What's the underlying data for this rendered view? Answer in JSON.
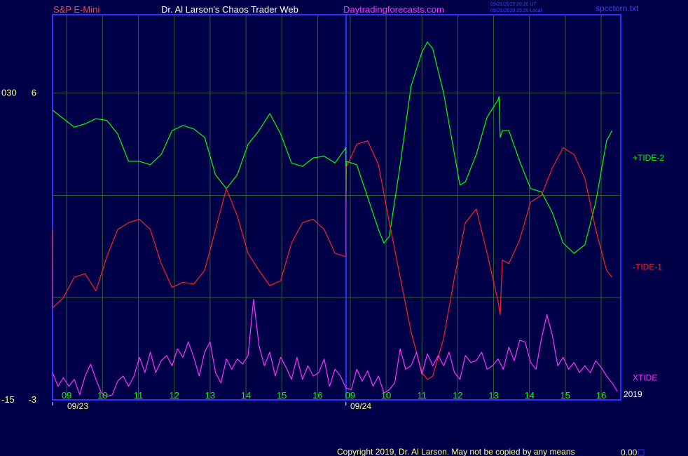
{
  "header": {
    "symbol": "S&P E-Mini",
    "title": "Dr. Al Larson's Chaos Trader Web",
    "site": "Daytradingforecasts.com",
    "stamp_line1": "09/21/2019 20:20 UT",
    "stamp_line2": "09/21/2019 15:20 Local",
    "file": "spcctorn.txt"
  },
  "footer": {
    "copyright": "Copyright 2019, Dr. Al Larson. May not be copied by any means",
    "value": "0.00"
  },
  "colors": {
    "background": "#000048",
    "axis": "#3030ff",
    "grid": "#306030",
    "tide2": "#00ff00",
    "tide1": "#ff2020",
    "xtide": "#ff30ff",
    "xlabels": "#00ff00",
    "header_symbol": "#ff4040",
    "header_title": "#ffffff",
    "header_site": "#ff30ff",
    "header_meta": "#4040ff",
    "yellow": "#ffff80"
  },
  "chart_data": {
    "type": "line",
    "y_ticks": [
      {
        "value": 6,
        "left_label": "030",
        "right_label": "6"
      },
      {
        "value": -3,
        "left_label": "-15",
        "right_label": "-3"
      }
    ],
    "x_hours": [
      "09",
      "10",
      "11",
      "12",
      "13",
      "14",
      "15",
      "16",
      "09",
      "10",
      "11",
      "12",
      "13",
      "14",
      "15",
      "16"
    ],
    "dates": [
      "09/23",
      "09/24"
    ],
    "year": "2019",
    "ylim": [
      -3,
      8.3
    ],
    "series": [
      {
        "name": "+TIDE-2",
        "key": "tide2",
        "values": [
          [
            0,
            5.5
          ],
          [
            2,
            5.0
          ],
          [
            3,
            5.1
          ],
          [
            4,
            5.25
          ],
          [
            5,
            5.2
          ],
          [
            6,
            4.8
          ],
          [
            7,
            4.0
          ],
          [
            8,
            4.0
          ],
          [
            9,
            3.9
          ],
          [
            10,
            4.2
          ],
          [
            11,
            4.9
          ],
          [
            12,
            5.05
          ],
          [
            13,
            4.95
          ],
          [
            14,
            4.7
          ],
          [
            15,
            3.6
          ],
          [
            16,
            3.2
          ],
          [
            17,
            3.6
          ],
          [
            18,
            4.5
          ],
          [
            19,
            4.9
          ],
          [
            20,
            5.4
          ],
          [
            21,
            4.8
          ],
          [
            22,
            3.95
          ],
          [
            23,
            3.85
          ],
          [
            24,
            4.1
          ],
          [
            25,
            4.15
          ],
          [
            26,
            3.95
          ],
          [
            27,
            4.4
          ],
          [
            27.01,
            2.8
          ],
          [
            27.05,
            4.0
          ],
          [
            28,
            3.9
          ],
          [
            30,
            2.0
          ],
          [
            30.5,
            1.6
          ],
          [
            31,
            1.8
          ],
          [
            32,
            3.9
          ],
          [
            33,
            6.2
          ],
          [
            34,
            7.2
          ],
          [
            34.5,
            7.5
          ],
          [
            35,
            7.3
          ],
          [
            36,
            6.0
          ],
          [
            37,
            4.2
          ],
          [
            37.5,
            3.3
          ],
          [
            38,
            3.4
          ],
          [
            39,
            4.2
          ],
          [
            40,
            5.3
          ],
          [
            41,
            5.8
          ],
          [
            41.1,
            5.9
          ],
          [
            41.2,
            4.7
          ],
          [
            41.4,
            4.9
          ],
          [
            42,
            4.9
          ],
          [
            43,
            4.0
          ],
          [
            44,
            3.2
          ],
          [
            45,
            3.1
          ],
          [
            46,
            2.5
          ],
          [
            47,
            1.6
          ],
          [
            48,
            1.3
          ],
          [
            49,
            1.55
          ],
          [
            50,
            2.8
          ],
          [
            51,
            4.6
          ],
          [
            51.5,
            4.9
          ]
        ]
      },
      {
        "name": "-TIDE-1",
        "key": "tide1",
        "values": [
          [
            0,
            2.0
          ],
          [
            0.01,
            -0.3
          ],
          [
            1,
            0.0
          ],
          [
            2,
            0.6
          ],
          [
            3,
            0.7
          ],
          [
            4,
            0.2
          ],
          [
            5,
            1.2
          ],
          [
            6,
            2.0
          ],
          [
            7,
            2.2
          ],
          [
            8,
            2.3
          ],
          [
            9,
            2.0
          ],
          [
            10,
            1.0
          ],
          [
            11,
            0.3
          ],
          [
            12,
            0.45
          ],
          [
            13,
            0.4
          ],
          [
            14,
            0.8
          ],
          [
            15,
            2.0
          ],
          [
            16,
            3.2
          ],
          [
            17,
            2.4
          ],
          [
            18,
            1.3
          ],
          [
            19,
            0.8
          ],
          [
            20,
            0.35
          ],
          [
            21,
            0.5
          ],
          [
            22,
            1.6
          ],
          [
            23,
            2.2
          ],
          [
            24,
            2.3
          ],
          [
            25,
            2.0
          ],
          [
            26,
            1.3
          ],
          [
            27,
            1.2
          ],
          [
            27.01,
            3.8
          ],
          [
            28,
            4.5
          ],
          [
            29,
            4.6
          ],
          [
            30,
            3.9
          ],
          [
            31,
            2.2
          ],
          [
            32,
            0.6
          ],
          [
            33,
            -1.0
          ],
          [
            34,
            -2.2
          ],
          [
            34.5,
            -2.4
          ],
          [
            35,
            -2.3
          ],
          [
            36,
            -1.2
          ],
          [
            37,
            0.6
          ],
          [
            38,
            2.2
          ],
          [
            39,
            2.6
          ],
          [
            40,
            1.3
          ],
          [
            41,
            -0.1
          ],
          [
            41.2,
            -0.5
          ],
          [
            41.4,
            1.1
          ],
          [
            42,
            1.0
          ],
          [
            43,
            1.7
          ],
          [
            44,
            2.8
          ],
          [
            45,
            3.0
          ],
          [
            46,
            3.8
          ],
          [
            47,
            4.4
          ],
          [
            48,
            4.2
          ],
          [
            49,
            3.5
          ],
          [
            50,
            2.0
          ],
          [
            51,
            0.8
          ],
          [
            51.5,
            0.6
          ]
        ]
      },
      {
        "name": "XTIDE",
        "key": "xtide",
        "values": [
          [
            0,
            -2.2
          ],
          [
            0.5,
            -2.6
          ],
          [
            1,
            -2.35
          ],
          [
            1.5,
            -2.6
          ],
          [
            2,
            -2.4
          ],
          [
            2.5,
            -2.85
          ],
          [
            3,
            -2.3
          ],
          [
            3.5,
            -1.95
          ],
          [
            4,
            -2.4
          ],
          [
            4.5,
            -2.8
          ],
          [
            5,
            -2.9
          ],
          [
            5.5,
            -2.85
          ],
          [
            6,
            -2.45
          ],
          [
            6.5,
            -2.3
          ],
          [
            7,
            -2.6
          ],
          [
            7.5,
            -2.3
          ],
          [
            8,
            -1.75
          ],
          [
            8.5,
            -2.2
          ],
          [
            9,
            -1.6
          ],
          [
            9.5,
            -2.2
          ],
          [
            10,
            -1.85
          ],
          [
            10.5,
            -1.7
          ],
          [
            11,
            -2.0
          ],
          [
            11.5,
            -1.5
          ],
          [
            12,
            -1.75
          ],
          [
            12.5,
            -1.3
          ],
          [
            13,
            -1.75
          ],
          [
            13.5,
            -2.3
          ],
          [
            14,
            -1.6
          ],
          [
            14.5,
            -1.3
          ],
          [
            15,
            -2.2
          ],
          [
            15.5,
            -2.5
          ],
          [
            16,
            -1.8
          ],
          [
            16.5,
            -2.1
          ],
          [
            17,
            -1.8
          ],
          [
            17.5,
            -1.95
          ],
          [
            18,
            -1.7
          ],
          [
            18.5,
            -0.05
          ],
          [
            19,
            -1.4
          ],
          [
            19.5,
            -2.0
          ],
          [
            20,
            -1.6
          ],
          [
            20.5,
            -2.3
          ],
          [
            21,
            -1.75
          ],
          [
            21.5,
            -2.05
          ],
          [
            22,
            -2.4
          ],
          [
            22.5,
            -1.75
          ],
          [
            23,
            -2.4
          ],
          [
            23.5,
            -2.0
          ],
          [
            24,
            -2.3
          ],
          [
            24.5,
            -2.2
          ],
          [
            25,
            -1.8
          ],
          [
            25.5,
            -2.6
          ],
          [
            26,
            -2.1
          ],
          [
            26.5,
            -2.3
          ],
          [
            27,
            -2.65
          ],
          [
            27.5,
            -2.7
          ],
          [
            28,
            -2.1
          ],
          [
            28.5,
            -2.45
          ],
          [
            29,
            -2.15
          ],
          [
            29.5,
            -2.6
          ],
          [
            30,
            -2.3
          ],
          [
            30.5,
            -2.8
          ],
          [
            31,
            -2.7
          ],
          [
            31.5,
            -2.5
          ],
          [
            32,
            -1.5
          ],
          [
            32.5,
            -2.1
          ],
          [
            33,
            -2.0
          ],
          [
            33.5,
            -1.6
          ],
          [
            34,
            -2.25
          ],
          [
            34.5,
            -1.65
          ],
          [
            35,
            -2.0
          ],
          [
            35.5,
            -1.7
          ],
          [
            36,
            -2.0
          ],
          [
            36.5,
            -1.6
          ],
          [
            37,
            -2.2
          ],
          [
            37.5,
            -2.4
          ],
          [
            38,
            -1.7
          ],
          [
            38.5,
            -1.9
          ],
          [
            39,
            -1.85
          ],
          [
            39.5,
            -1.6
          ],
          [
            40,
            -2.1
          ],
          [
            40.5,
            -2.0
          ],
          [
            41,
            -1.8
          ],
          [
            41.5,
            -2.1
          ],
          [
            42,
            -1.45
          ],
          [
            42.5,
            -1.85
          ],
          [
            43,
            -1.25
          ],
          [
            43.5,
            -1.3
          ],
          [
            44,
            -1.9
          ],
          [
            44.5,
            -2.1
          ],
          [
            45,
            -1.2
          ],
          [
            45.5,
            -0.5
          ],
          [
            46,
            -1.1
          ],
          [
            46.5,
            -2.0
          ],
          [
            47,
            -1.75
          ],
          [
            47.5,
            -2.1
          ],
          [
            48,
            -1.9
          ],
          [
            48.5,
            -2.2
          ],
          [
            49,
            -2.0
          ],
          [
            49.5,
            -2.2
          ],
          [
            50,
            -1.85
          ],
          [
            50.5,
            -2.05
          ],
          [
            51,
            -2.3
          ],
          [
            51.5,
            -2.5
          ],
          [
            52,
            -2.75
          ]
        ]
      }
    ]
  }
}
